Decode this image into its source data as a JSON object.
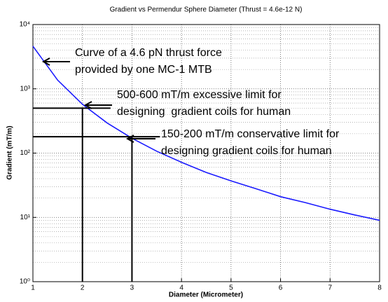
{
  "chart_data": {
    "type": "line",
    "title": "Gradient vs Permendur Sphere Diameter (Thrust = 4.6e-12 N)",
    "x_label": "Diameter (Micrometer)",
    "y_label": "Gradient (mT/m)",
    "x": [
      1,
      1.5,
      2,
      2.5,
      3,
      3.5,
      4,
      4.5,
      5,
      5.5,
      6,
      6.5,
      7,
      7.5,
      8
    ],
    "series": [
      {
        "color": "#1a1aff",
        "values": [
          4600,
          1363,
          575,
          294,
          170,
          107,
          72,
          50,
          37,
          28,
          21,
          17,
          13.4,
          10.9,
          9.0
        ]
      }
    ],
    "xlim": [
      1,
      8
    ],
    "xticks": [
      1,
      2,
      3,
      4,
      5,
      6,
      7,
      8
    ],
    "ylim": [
      1,
      10000
    ],
    "log_y": true,
    "yticks": [
      {
        "value": 1,
        "label": "10⁰"
      },
      {
        "value": 10,
        "label": "10¹"
      },
      {
        "value": 100,
        "label": "10²"
      },
      {
        "value": 1000,
        "label": "10³"
      },
      {
        "value": 10000,
        "label": "10⁴"
      }
    ],
    "grid": true,
    "reference_lines": [
      {
        "x": 2,
        "y": 500
      },
      {
        "x": 3,
        "y": 180
      }
    ],
    "annotations": [
      {
        "lines": [
          "Curve of a 4.6 pN thrust force",
          "provided by one MC-1 MTB"
        ]
      },
      {
        "lines": [
          "500-600 mT/m excessive limit for",
          "designing  gradient coils for human"
        ]
      },
      {
        "lines": [
          "150-200 mT/m conservative limit for",
          "designing gradient coils for human"
        ]
      }
    ]
  }
}
